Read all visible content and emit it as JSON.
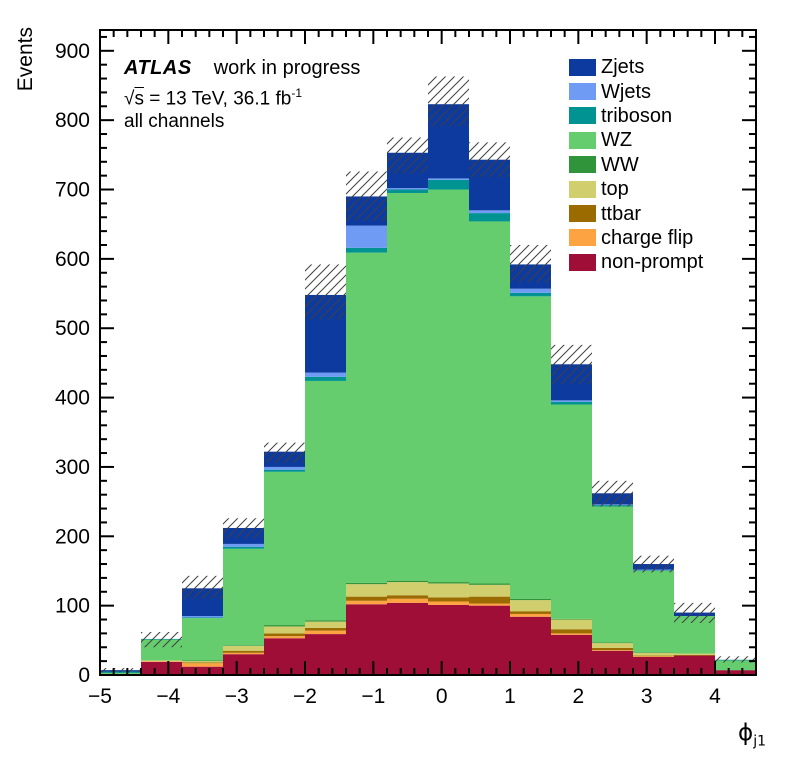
{
  "annotations": {
    "experiment": "ATLAS",
    "status": "work in progress",
    "lumi_sqrt": "√",
    "lumi_s": "s",
    "lumi_text": " = 13 TeV, 36.1 fb",
    "lumi_sup": "-1",
    "channels": "all channels"
  },
  "chart_data": {
    "type": "bar",
    "subtype": "stacked-histogram",
    "title": "",
    "ylabel": "Events",
    "xlabel": {
      "symbol": "ϕ",
      "subscript": "j1"
    },
    "xlim": [
      -5.0,
      4.6
    ],
    "ylim": [
      0,
      930
    ],
    "x_major_ticks": [
      -5,
      -4,
      -3,
      -2,
      -1,
      0,
      1,
      2,
      3,
      4
    ],
    "x_minor_step": 0.2,
    "y_major_step": 100,
    "y_minor_step": 20,
    "grid": false,
    "legend_position": "top-right",
    "frame_color": "#000000",
    "hatch_color": "#3f3f3f",
    "bin_edges": [
      -5.0,
      -4.4,
      -3.8,
      -3.2,
      -2.6,
      -2.0,
      -1.4,
      -0.8,
      -0.2,
      0.4,
      1.0,
      1.6,
      2.2,
      2.8,
      3.4,
      4.0,
      4.6
    ],
    "series": [
      {
        "name": "non-prompt",
        "color": "#9e0e36",
        "values": [
          1,
          19,
          12,
          30,
          53,
          59,
          102,
          104,
          101,
          100,
          84,
          58,
          35,
          26,
          28,
          7
        ]
      },
      {
        "name": "charge flip",
        "color": "#fda342",
        "values": [
          0,
          1,
          5,
          2,
          3,
          5,
          5,
          6,
          5,
          3,
          4,
          2,
          1,
          1,
          0,
          0
        ]
      },
      {
        "name": "ttbar",
        "color": "#9c6b00",
        "values": [
          0,
          0,
          1,
          3,
          4,
          4,
          6,
          5,
          6,
          10,
          4,
          6,
          3,
          1,
          1,
          0
        ]
      },
      {
        "name": "top",
        "color": "#d0ce6d",
        "values": [
          0,
          1,
          2,
          7,
          10,
          9,
          18,
          19,
          20,
          17,
          16,
          14,
          7,
          4,
          2,
          0
        ]
      },
      {
        "name": "WW",
        "color": "#30943a",
        "values": [
          0,
          0,
          1,
          1,
          2,
          2,
          2,
          2,
          2,
          2,
          2,
          1,
          1,
          1,
          0,
          0
        ]
      },
      {
        "name": "WZ",
        "color": "#65cd6d",
        "values": [
          2,
          30,
          61,
          139,
          221,
          345,
          476,
          559,
          566,
          522,
          436,
          309,
          196,
          117,
          54,
          14
        ]
      },
      {
        "name": "triboson",
        "color": "#009391",
        "values": [
          2,
          1,
          1,
          3,
          3,
          6,
          7,
          5,
          14,
          12,
          5,
          4,
          2,
          1,
          0,
          1
        ]
      },
      {
        "name": "Wjets",
        "color": "#6f9bf5",
        "values": [
          0,
          0,
          2,
          4,
          4,
          6,
          32,
          2,
          2,
          4,
          6,
          2,
          1,
          1,
          0,
          0
        ]
      },
      {
        "name": "Zjets",
        "color": "#0d3a9e",
        "values": [
          2,
          0,
          40,
          23,
          22,
          112,
          42,
          51,
          107,
          73,
          35,
          52,
          16,
          8,
          5,
          0
        ]
      }
    ],
    "totals": [
      7,
      52,
      125,
      212,
      322,
      548,
      690,
      753,
      823,
      743,
      592,
      448,
      262,
      160,
      90,
      22
    ],
    "uncertainty_band": {
      "lo": [
        4,
        40,
        110,
        197,
        306,
        513,
        655,
        723,
        791,
        718,
        566,
        420,
        243,
        148,
        75,
        18
      ],
      "hi": [
        10,
        62,
        143,
        226,
        335,
        592,
        726,
        775,
        863,
        768,
        620,
        476,
        280,
        172,
        104,
        27
      ]
    }
  }
}
